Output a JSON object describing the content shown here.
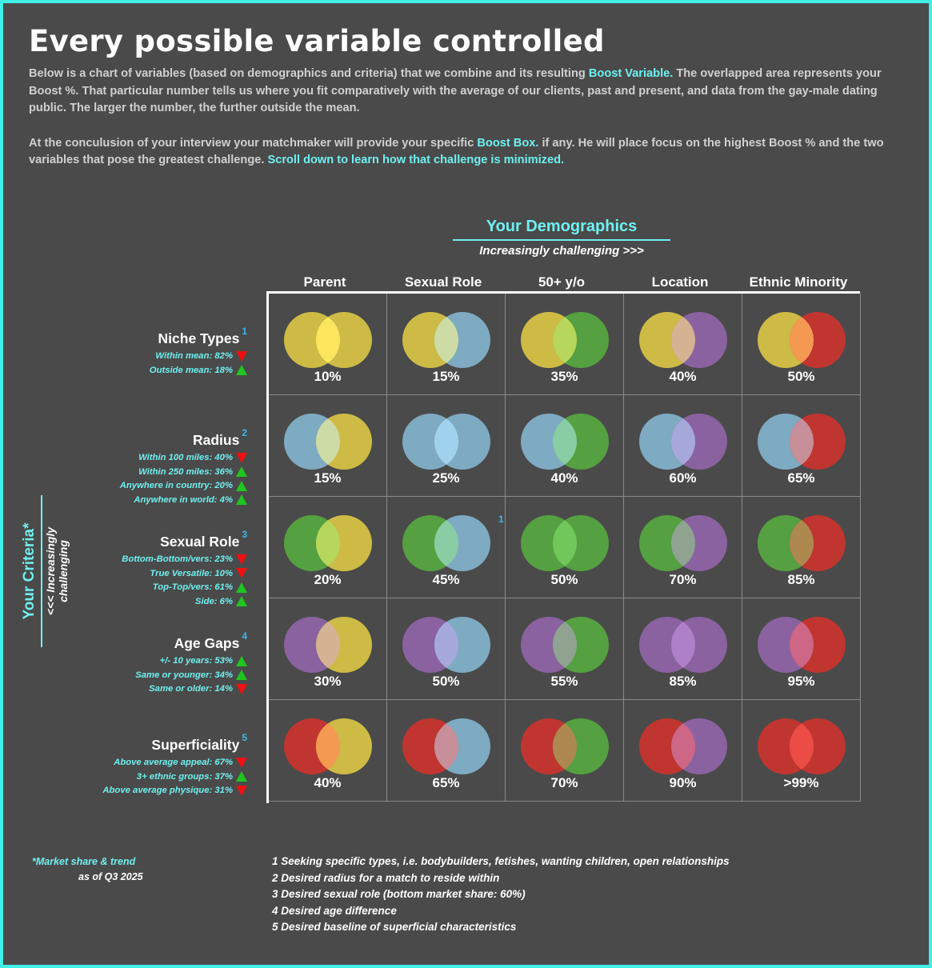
{
  "title": "Every possible variable controlled",
  "intro": {
    "p1_a": "Below is a chart of variables (based on demographics and criteria) that we combine and its resulting ",
    "p1_hl": "Boost Variable.",
    "p1_b": " The overlapped area represents your Boost %.  That particular number tells us where you fit comparatively with the average of our clients, past and present, and data from the gay-male dating public. The larger the number, the further outside the mean.",
    "p2_a": "At the conculusion of your interview your matchmaker will provide your specific ",
    "p2_hl": "Boost Box.",
    "p2_b": " if any. He will place focus on the highest Boost % and the two variables that pose the greatest challenge. ",
    "p2_link": "Scroll down to learn how that challenge is minimized."
  },
  "demographics": {
    "title": "Your Demographics",
    "subtitle": "Increasingly challenging >>>"
  },
  "criteria": {
    "title": "Your Criteria*",
    "subtitle": "<<< Increasingly challenging"
  },
  "colors": {
    "yellow": "#cdbb45",
    "blue": "#7eaac2",
    "green": "#55a040",
    "purple": "#8a62a0",
    "red": "#c03530"
  },
  "columns": [
    {
      "label": "Parent",
      "color": "yellow"
    },
    {
      "label": "Sexual Role",
      "color": "blue"
    },
    {
      "label": "50+ y/o",
      "color": "green"
    },
    {
      "label": "Location",
      "color": "purple"
    },
    {
      "label": "Ethnic Minority",
      "color": "red"
    }
  ],
  "rows": [
    {
      "label": "Niche Types",
      "note": "1",
      "color": "yellow",
      "stats": [
        {
          "text": "Within mean: 82%",
          "trend": "down"
        },
        {
          "text": "Outside mean: 18%",
          "trend": "up"
        }
      ],
      "values": [
        "10%",
        "15%",
        "35%",
        "40%",
        "50%"
      ]
    },
    {
      "label": "Radius",
      "note": "2",
      "color": "blue",
      "stats": [
        {
          "text": "Within 100 miles: 40%",
          "trend": "down"
        },
        {
          "text": "Within 250 miles: 36%",
          "trend": "up"
        },
        {
          "text": "Anywhere in country: 20%",
          "trend": "up"
        },
        {
          "text": "Anywhere in world: 4%",
          "trend": "up"
        }
      ],
      "values": [
        "15%",
        "25%",
        "40%",
        "60%",
        "65%"
      ]
    },
    {
      "label": "Sexual Role",
      "note": "3",
      "color": "green",
      "stats": [
        {
          "text": "Bottom-Bottom/vers: 23%",
          "trend": "down"
        },
        {
          "text": "True Versatile: 10%",
          "trend": "down"
        },
        {
          "text": "Top-Top/vers: 61%",
          "trend": "up"
        },
        {
          "text": "Side: 6%",
          "trend": "up"
        }
      ],
      "values": [
        "20%",
        "45%",
        "50%",
        "70%",
        "85%"
      ]
    },
    {
      "label": "Age Gaps",
      "note": "4",
      "color": "purple",
      "stats": [
        {
          "text": "+/- 10 years: 53%",
          "trend": "up"
        },
        {
          "text": "Same or younger: 34%",
          "trend": "up"
        },
        {
          "text": "Same or older: 14%",
          "trend": "down"
        }
      ],
      "values": [
        "30%",
        "50%",
        "55%",
        "85%",
        "95%"
      ]
    },
    {
      "label": "Superficiality",
      "note": "5",
      "color": "red",
      "stats": [
        {
          "text": "Above average appeal: 67%",
          "trend": "down"
        },
        {
          "text": "3+ ethnic groups: 37%",
          "trend": "up"
        },
        {
          "text": "Above average physique: 31%",
          "trend": "down"
        }
      ],
      "values": [
        "40%",
        "65%",
        "70%",
        "90%",
        ">99%"
      ]
    }
  ],
  "stray_note": "1",
  "footer": {
    "market_a": "*Market share & trend",
    "market_b": "as of Q3 2025",
    "notes": [
      "1 Seeking specific types, i.e. bodybuilders, fetishes, wanting children, open relationships",
      "2 Desired radius for a match to reside within",
      "3 Desired sexual role (bottom market share: 60%)",
      "4 Desired age difference",
      "5 Desired baseline of superficial characteristics"
    ]
  }
}
